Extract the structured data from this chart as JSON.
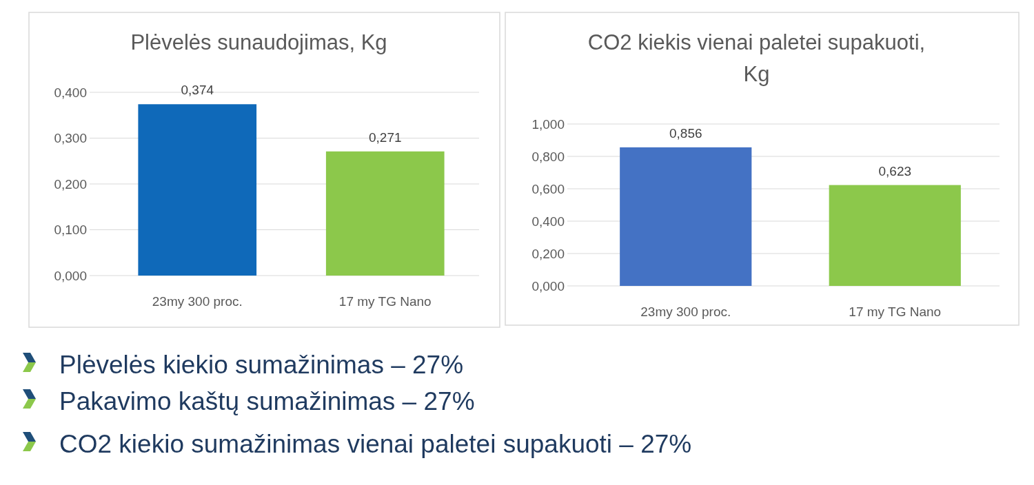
{
  "chart_data": [
    {
      "type": "bar",
      "title": "Plėvelės sunaudojimas, Kg",
      "categories": [
        "23my 300 proc.",
        "17 my TG Nano"
      ],
      "values": [
        0.374,
        0.271
      ],
      "colors": [
        "#0f69b9",
        "#8cc84b"
      ],
      "value_labels": [
        "0,374",
        "0,271"
      ],
      "ylim": [
        0,
        0.4
      ],
      "yticks": [
        {
          "value": 0,
          "label": "0,000"
        },
        {
          "value": 0.1,
          "label": "0,100"
        },
        {
          "value": 0.2,
          "label": "0,200"
        },
        {
          "value": 0.3,
          "label": "0,300"
        },
        {
          "value": 0.4,
          "label": "0,400"
        }
      ],
      "grid": "y"
    },
    {
      "type": "bar",
      "title": "CO2 kiekis  vienai paletei supakuoti, Kg",
      "categories": [
        "23my 300 proc.",
        "17 my TG Nano"
      ],
      "values": [
        0.856,
        0.623
      ],
      "colors": [
        "#4472c4",
        "#8cc84b"
      ],
      "value_labels": [
        "0,856",
        "0,623"
      ],
      "ylim": [
        0,
        1
      ],
      "yticks": [
        {
          "value": 0,
          "label": "0,000"
        },
        {
          "value": 0.2,
          "label": "0,200"
        },
        {
          "value": 0.4,
          "label": "0,400"
        },
        {
          "value": 0.6,
          "label": "0,600"
        },
        {
          "value": 0.8,
          "label": "0,800"
        },
        {
          "value": 1,
          "label": "1,000"
        }
      ],
      "grid": "y"
    },
    {
      "type": "other",
      "annotations": [
        "Plėvelės kiekio sumažinimas – 27%",
        "Pakavimo kaštų sumažinimas – 27%",
        "CO2 kiekio sumažinimas vienai paletei supakuoti – 27%"
      ]
    }
  ]
}
